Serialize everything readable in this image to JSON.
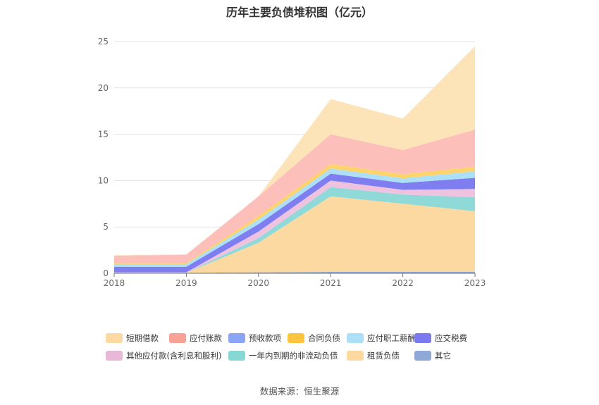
{
  "chart_data": {
    "type": "area",
    "stacked": true,
    "title": "历年主要负债堆积图（亿元）",
    "categories": [
      "2018",
      "2019",
      "2020",
      "2021",
      "2022",
      "2023"
    ],
    "ylim": [
      0,
      25
    ],
    "yticks": [
      "0",
      "5",
      "10",
      "15",
      "20",
      "25"
    ],
    "grid": true,
    "legend_position": "bottom",
    "series": [
      {
        "name": "其它",
        "color": "#8fa9d6",
        "values": [
          0.05,
          0.05,
          0.1,
          0.15,
          0.15,
          0.15
        ]
      },
      {
        "name": "租赁负债",
        "color": "#fcd9a0",
        "values": [
          0.0,
          0.0,
          3.2,
          8.15,
          7.35,
          6.55
        ]
      },
      {
        "name": "一年内到期的非流动负债",
        "color": "#8fd9d9",
        "values": [
          0.0,
          0.0,
          0.5,
          1.0,
          1.0,
          1.5
        ]
      },
      {
        "name": "其他应付款(含利息和股利)",
        "color": "#efc3e0",
        "values": [
          0.05,
          0.05,
          0.7,
          0.7,
          0.5,
          0.9
        ]
      },
      {
        "name": "应交税费",
        "color": "#7e7ef0",
        "values": [
          0.6,
          0.6,
          0.8,
          0.75,
          0.75,
          1.2
        ]
      },
      {
        "name": "应付职工薪酬",
        "color": "#addff7",
        "values": [
          0.3,
          0.3,
          0.5,
          0.55,
          0.5,
          0.7
        ]
      },
      {
        "name": "合同负债",
        "color": "#fdd36b",
        "values": [
          0.1,
          0.1,
          0.4,
          0.5,
          0.45,
          0.5
        ]
      },
      {
        "name": "预收款项",
        "color": "#8ca4f5",
        "values": [
          0.0,
          0.0,
          0.0,
          0.0,
          0.0,
          0.0
        ]
      },
      {
        "name": "应付账款",
        "color": "#fcbfba",
        "values": [
          0.8,
          0.9,
          2.1,
          3.2,
          2.6,
          4.0
        ]
      },
      {
        "name": "短期借款",
        "color": "#fde4b8",
        "values": [
          0.05,
          0.05,
          0.0,
          3.8,
          3.4,
          9.0
        ]
      }
    ],
    "legend": [
      {
        "name": "短期借款",
        "color": "#fcd9a0"
      },
      {
        "name": "应付账款",
        "color": "#f8a197"
      },
      {
        "name": "预收款项",
        "color": "#8ca4f5"
      },
      {
        "name": "合同负债",
        "color": "#fdc440"
      },
      {
        "name": "应付职工薪酬",
        "color": "#addff7"
      },
      {
        "name": "应交税费",
        "color": "#7a79ee"
      },
      {
        "name": "其他应付款(含利息和股利)",
        "color": "#e9b7d8"
      },
      {
        "name": "一年内到期的非流动负债",
        "color": "#86d8d4"
      },
      {
        "name": "租赁负债",
        "color": "#fcd9a0"
      },
      {
        "name": "其它",
        "color": "#8fa9d6"
      }
    ]
  },
  "source": "数据来源：恒生聚源"
}
